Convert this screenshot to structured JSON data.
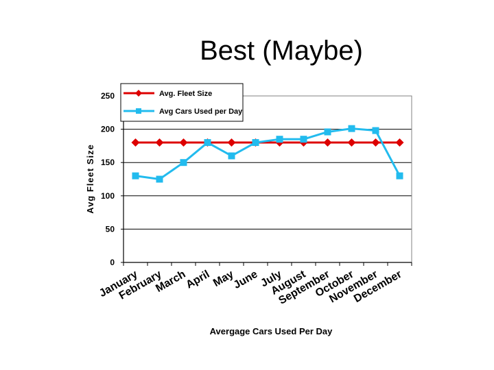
{
  "slide": {
    "title": "Best (Maybe)"
  },
  "chart_data": {
    "type": "line",
    "title": "",
    "xlabel": "Avergage Cars Used Per Day",
    "ylabel": "Avg Fleet Size",
    "ylim": [
      0,
      250
    ],
    "yticks": [
      0,
      50,
      100,
      150,
      200,
      250
    ],
    "grid": true,
    "legend_position": "top-left",
    "categories": [
      "January",
      "February",
      "March",
      "April",
      "May",
      "June",
      "July",
      "August",
      "September",
      "October",
      "November",
      "December"
    ],
    "series": [
      {
        "name": "Avg. Fleet Size",
        "color": "#dd0000",
        "marker": "diamond",
        "values": [
          180,
          180,
          180,
          180,
          180,
          180,
          180,
          180,
          180,
          180,
          180,
          180
        ]
      },
      {
        "name": "Avg Cars Used per Day",
        "color": "#22bbee",
        "marker": "square",
        "values": [
          130,
          125,
          150,
          180,
          160,
          180,
          185,
          185,
          196,
          201,
          198,
          130
        ]
      }
    ]
  }
}
